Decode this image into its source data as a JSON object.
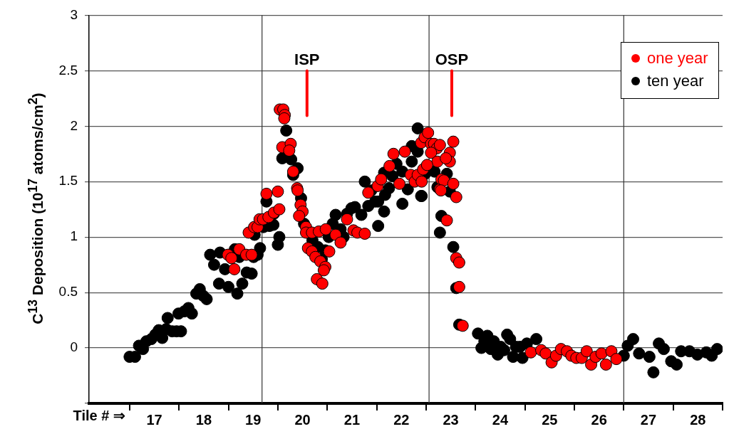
{
  "chart_data": {
    "type": "scatter",
    "ylabel": "C$^{13}$ Deposition (10$^{17}$ atoms/cm$^{2}$)",
    "xlabel": "Tile # ⇒",
    "xlim": [
      15.68,
      28.5
    ],
    "xticks": [
      {
        "value": 16.5,
        "label": null
      },
      17,
      {
        "value": 17.5,
        "label": null
      },
      18,
      {
        "value": 18.5,
        "label": null
      },
      19,
      {
        "value": 19.5,
        "label": null
      },
      20,
      {
        "value": 20.5,
        "label": null
      },
      21,
      {
        "value": 21.5,
        "label": null
      },
      22,
      {
        "value": 22.5,
        "label": null
      },
      23,
      {
        "value": 23.5,
        "label": null
      },
      24,
      {
        "value": 24.5,
        "label": null
      },
      25,
      {
        "value": 25.5,
        "label": null
      },
      26,
      {
        "value": 26.5,
        "label": null
      },
      27,
      {
        "value": 27.5,
        "label": null
      },
      28,
      {
        "value": 28.5,
        "label": null
      }
    ],
    "ylim": [
      -0.5,
      3
    ],
    "yticks": [
      {
        "value": -0.5,
        "label": null
      },
      0,
      0.5,
      1,
      1.5,
      2,
      2.5,
      3
    ],
    "grid": "y",
    "marker": "circle",
    "legend": "top right",
    "ref_lines": [
      {
        "axis": "x",
        "value": 19.18,
        "color": "#333333"
      },
      {
        "axis": "x",
        "value": 22.56,
        "color": "#333333"
      },
      {
        "axis": "x",
        "value": 26.5,
        "color": "#333333"
      },
      {
        "axis": "x",
        "value": 20.09,
        "label": "ISP",
        "color": "#ff0000"
      },
      {
        "axis": "x",
        "value": 23.02,
        "label": "OSP",
        "color": "#ff0000"
      }
    ],
    "series": [
      {
        "name": "one year",
        "color": "#ff0000",
        "x": [
          18.91,
          19.02,
          19.09,
          19.13,
          19.2,
          19.27,
          18.49,
          18.56,
          18.72,
          18.86,
          18.97,
          18.62,
          19.11,
          19.31,
          19.42,
          19.5,
          19.53,
          19.54,
          19.61,
          19.64,
          19.63,
          19.59,
          19.76,
          19.73,
          19.81,
          19.89,
          19.9,
          19.96,
          20,
          19.93,
          20.07,
          20.07,
          20.19,
          20.33,
          20.47,
          20.11,
          20.19,
          20.26,
          20.36,
          20.46,
          20.43,
          20.29,
          20.4,
          20.54,
          20.67,
          20.77,
          20.9,
          21.03,
          21.11,
          21.26,
          21.33,
          21.52,
          21.59,
          21.76,
          21.84,
          21.96,
          22.07,
          22.19,
          22.27,
          22.33,
          22.4,
          22.47,
          22.54,
          22.6,
          22.66,
          22.72,
          22.78,
          22.6,
          22.73,
          22.44,
          22.41,
          22.78,
          22.81,
          23.05,
          22.98,
          22.98,
          22.9,
          22.52,
          22.86,
          22.8,
          23.05,
          23.11,
          22.92,
          23.11,
          23.17,
          23.17,
          23.24,
          24.62,
          24.83,
          24.92,
          25.04,
          25.13,
          25.23,
          25.35,
          25.44,
          25.54,
          25.65,
          25.75,
          25.84,
          25.93,
          26.05,
          26.14,
          26.25,
          26.35
        ],
        "values": [
          1.04,
          1.09,
          1.09,
          1.16,
          1.16,
          1.39,
          0.84,
          0.81,
          0.89,
          0.84,
          0.84,
          0.71,
          null,
          1.18,
          1.22,
          1.41,
          1.25,
          2.15,
          2.15,
          2.1,
          2.07,
          1.81,
          1.84,
          1.78,
          1.59,
          1.44,
          1.42,
          1.29,
          1.23,
          1.19,
          1.09,
          1.04,
          1.04,
          1.05,
          1.07,
          0.9,
          0.87,
          0.82,
          0.78,
          0.73,
          0.7,
          0.62,
          0.58,
          0.87,
          1.02,
          0.95,
          1.16,
          1.06,
          1.04,
          1.03,
          1.4,
          1.46,
          1.52,
          1.64,
          1.75,
          1.48,
          1.77,
          1.56,
          1.5,
          1.56,
          1.85,
          1.9,
          1.94,
          1.84,
          1.84,
          1.8,
          1.83,
          1.76,
          1.68,
          1.61,
          1.5,
          1.43,
          1.52,
          1.86,
          1.76,
          1.68,
          1.71,
          1.65,
          1.51,
          1.42,
          1.48,
          1.36,
          1.15,
          0.81,
          0.77,
          0.55,
          0.2,
          -0.04,
          -0.02,
          -0.05,
          -0.13,
          -0.07,
          -0.01,
          -0.03,
          -0.07,
          -0.09,
          -0.09,
          -0.03,
          -0.15,
          -0.08,
          -0.05,
          -0.15,
          -0.03,
          -0.1
        ]
      },
      {
        "name": "ten year",
        "color": "#000000",
        "x": [
          16.5,
          16.61,
          16.69,
          16.77,
          16.84,
          16.94,
          17.02,
          17.09,
          17.16,
          17.24,
          17.27,
          17.36,
          17.45,
          17.49,
          17.54,
          17.61,
          17.69,
          17.76,
          17.85,
          17.92,
          17.99,
          18.06,
          18.13,
          18.21,
          18.31,
          18.33,
          18.43,
          18.5,
          18.57,
          18.63,
          18.68,
          18.72,
          18.78,
          18.87,
          18.97,
          19.01,
          19.03,
          19.09,
          19.14,
          19.21,
          19.27,
          19.33,
          19.41,
          19.42,
          19.5,
          19.53,
          19.67,
          19.59,
          19.77,
          19.9,
          19.81,
          19.97,
          20.03,
          20.2,
          20.31,
          20.39,
          20.46,
          20.53,
          20.61,
          20.67,
          20.77,
          20.83,
          20.9,
          20.99,
          21.06,
          21.19,
          21.26,
          21.39,
          21.33,
          21.47,
          21.53,
          21.53,
          21.59,
          21.65,
          21.67,
          21.65,
          21.9,
          21.82,
          21.75,
          22.02,
          22.02,
          22.13,
          22.21,
          22.21,
          22.33,
          22.4,
          22.33,
          22.56,
          22.67,
          22.72,
          22.81,
          22.78,
          22.63,
          22.48,
          22.92,
          22.73,
          22.98,
          22.41,
          23.05,
          23.11,
          23.17,
          23.55,
          23.74,
          23.68,
          23.62,
          23.87,
          23.81,
          23.95,
          24.01,
          24.08,
          24.14,
          24.2,
          24.26,
          24.32,
          24.4,
          24.45,
          24.54,
          24.73,
          26.5,
          26.58,
          26.69,
          26.81,
          27.02,
          27.21,
          27.31,
          27.1,
          27.46,
          27.57,
          27.66,
          27.83,
          27.99,
          28.17,
          28.28,
          28.39
        ],
        "values": [
          -0.08,
          -0.08,
          0.02,
          -0.01,
          0.06,
          0.08,
          0.12,
          0.16,
          0.09,
          0.17,
          0.27,
          0.15,
          0.15,
          0.31,
          0.15,
          0.33,
          0.36,
          0.31,
          0.49,
          0.53,
          0.47,
          0.44,
          0.84,
          0.75,
          0.58,
          0.86,
          0.71,
          0.55,
          null,
          0.89,
          0.49,
          0.82,
          0.58,
          0.68,
          0.67,
          0.82,
          1.02,
          0.84,
          0.9,
          1.09,
          1.32,
          1.1,
          1.11,
          1.21,
          0.93,
          1.0,
          1.96,
          1.71,
          1.7,
          1.62,
          1.56,
          1.35,
          1.12,
          0.97,
          0.91,
          0.8,
          0.88,
          1.0,
          1.12,
          1.2,
          1.07,
          1.0,
          1.21,
          1.26,
          1.27,
          1.2,
          1.5,
          1.42,
          1.28,
          1.32,
          1.32,
          1.1,
          null,
          1.58,
          1.38,
          1.23,
          1.66,
          1.55,
          1.44,
          1.3,
          1.59,
          1.43,
          1.82,
          1.68,
          1.77,
          1.37,
          1.98,
          null,
          1.59,
          null,
          1.19,
          1.04,
          null,
          1.57,
          1.57,
          1.45,
          1.41,
          1.37,
          0.91,
          0.54,
          0.21,
          0.13,
          0.11,
          0.06,
          0.0,
          0.06,
          -0.01,
          -0.06,
          0.01,
          -0.02,
          0.12,
          0.08,
          -0.08,
          0.01,
          0.01,
          -0.09,
          0.04,
          0.08,
          -0.07,
          0.02,
          0.08,
          -0.05,
          -0.08,
          0.04,
          -0.01,
          -0.22,
          -0.12,
          -0.15,
          -0.03,
          -0.03,
          -0.06,
          -0.04,
          -0.07,
          -0.01
        ]
      }
    ]
  }
}
